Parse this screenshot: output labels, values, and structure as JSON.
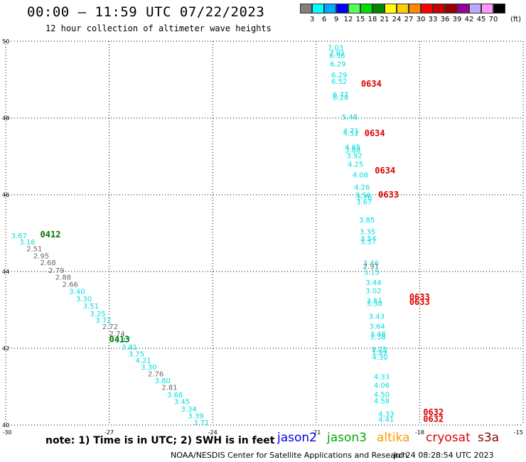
{
  "title": "00:00 – 11:59 UTC 07/22/2023",
  "subtitle": "12 hour collection of altimeter wave heights",
  "note": "note: 1) Time is in UTC; 2) SWH is in feet",
  "credit": "NOAA/NESDIS Center for Satellite Applications and Research",
  "stamp": "Jul 24 08:28:54 UTC 2023",
  "legend": [
    {
      "label": "jason2",
      "color": "#0000dd"
    },
    {
      "label": "jason3",
      "color": "#00aa00"
    },
    {
      "label": "altika",
      "color": "#ff9900"
    },
    {
      "label": "cryosat",
      "color": "#dd0000"
    },
    {
      "label": "s3a",
      "color": "#880000"
    }
  ],
  "colorbar": {
    "unit": "(ft)",
    "cells": [
      {
        "label": "3",
        "color": "#808080"
      },
      {
        "label": "6",
        "color": "#00ffff"
      },
      {
        "label": "9",
        "color": "#00aaff"
      },
      {
        "label": "12",
        "color": "#0000ff"
      },
      {
        "label": "15",
        "color": "#55ff55"
      },
      {
        "label": "18",
        "color": "#00dd00"
      },
      {
        "label": "21",
        "color": "#008800"
      },
      {
        "label": "24",
        "color": "#ffff00"
      },
      {
        "label": "27",
        "color": "#ffcc00"
      },
      {
        "label": "30",
        "color": "#ff8800"
      },
      {
        "label": "33",
        "color": "#ff0000"
      },
      {
        "label": "36",
        "color": "#cc0000"
      },
      {
        "label": "39",
        "color": "#990000"
      },
      {
        "label": "42",
        "color": "#990099"
      },
      {
        "label": "45",
        "color": "#bbaaff"
      },
      {
        "label": "70",
        "color": "#ff99ff"
      },
      {
        "label": "",
        "color": "#000000"
      }
    ]
  },
  "chart_data": {
    "type": "scatter",
    "xlim": [
      -30,
      -15
    ],
    "ylim": [
      40,
      50
    ],
    "xticks": [
      -30,
      -27,
      -24,
      -21,
      -18,
      -15
    ],
    "xtick_labels": [
      "-30",
      "-27",
      "-24",
      "-21",
      "-18",
      "-15"
    ],
    "yticks": [
      40,
      42,
      44,
      46,
      48,
      50
    ],
    "ytick_labels": [
      "40",
      "42",
      "44",
      "46",
      "48",
      "50"
    ],
    "grid": true,
    "colors": {
      "cyan": "#00dddd",
      "gray": "#666666",
      "green": "#007700",
      "red": "#dd0000"
    },
    "time_labels": [
      {
        "text": "0412",
        "lon": -29.0,
        "lat": 44.98,
        "color": "green"
      },
      {
        "text": "0413",
        "lon": -27.0,
        "lat": 42.25,
        "color": "green"
      },
      {
        "text": "0634",
        "lon": -19.7,
        "lat": 48.91,
        "color": "red"
      },
      {
        "text": "0634",
        "lon": -19.6,
        "lat": 47.62,
        "color": "red"
      },
      {
        "text": "0634",
        "lon": -19.3,
        "lat": 46.65,
        "color": "red"
      },
      {
        "text": "0633",
        "lon": -19.2,
        "lat": 46.02,
        "color": "red"
      },
      {
        "text": "0633",
        "lon": -18.3,
        "lat": 43.35,
        "color": "red"
      },
      {
        "text": "0633",
        "lon": -18.3,
        "lat": 43.22,
        "color": "red"
      },
      {
        "text": "0632",
        "lon": -17.9,
        "lat": 40.35,
        "color": "red"
      },
      {
        "text": "0632",
        "lon": -17.9,
        "lat": 40.18,
        "color": "red"
      }
    ],
    "points": [
      {
        "lon": -20.67,
        "lat": 49.84,
        "text": "7.03",
        "color": "cyan"
      },
      {
        "lon": -20.62,
        "lat": 49.7,
        "text": "7.01",
        "color": "cyan"
      },
      {
        "lon": -20.62,
        "lat": 49.64,
        "text": "6.56",
        "color": "cyan"
      },
      {
        "lon": -20.6,
        "lat": 49.42,
        "text": "6.29",
        "color": "cyan"
      },
      {
        "lon": -20.56,
        "lat": 49.13,
        "text": "6.29",
        "color": "cyan"
      },
      {
        "lon": -20.56,
        "lat": 48.96,
        "text": "6.52",
        "color": "cyan"
      },
      {
        "lon": -20.52,
        "lat": 48.62,
        "text": "6.77",
        "color": "cyan"
      },
      {
        "lon": -20.52,
        "lat": 48.55,
        "text": "6.28",
        "color": "cyan"
      },
      {
        "lon": -20.26,
        "lat": 48.04,
        "text": "5.48",
        "color": "cyan"
      },
      {
        "lon": -20.22,
        "lat": 47.68,
        "text": "4.71",
        "color": "cyan"
      },
      {
        "lon": -20.22,
        "lat": 47.61,
        "text": "4.52",
        "color": "cyan"
      },
      {
        "lon": -20.17,
        "lat": 47.25,
        "text": "4.65",
        "color": "cyan"
      },
      {
        "lon": -20.17,
        "lat": 47.18,
        "text": "3.88",
        "color": "cyan"
      },
      {
        "lon": -20.12,
        "lat": 47.03,
        "text": "3.92",
        "color": "cyan"
      },
      {
        "lon": -20.09,
        "lat": 46.81,
        "text": "4.25",
        "color": "cyan"
      },
      {
        "lon": -19.95,
        "lat": 46.53,
        "text": "4.08",
        "color": "cyan"
      },
      {
        "lon": -19.9,
        "lat": 46.2,
        "text": "4.26",
        "color": "cyan"
      },
      {
        "lon": -19.87,
        "lat": 46.0,
        "text": "3.56",
        "color": "cyan"
      },
      {
        "lon": -19.84,
        "lat": 45.94,
        "text": "3.76",
        "color": "cyan"
      },
      {
        "lon": -19.84,
        "lat": 45.82,
        "text": "3.67",
        "color": "cyan"
      },
      {
        "lon": -19.76,
        "lat": 45.35,
        "text": "3.85",
        "color": "cyan"
      },
      {
        "lon": -19.74,
        "lat": 45.05,
        "text": "3.35",
        "color": "cyan"
      },
      {
        "lon": -19.72,
        "lat": 44.87,
        "text": "3.54",
        "color": "cyan"
      },
      {
        "lon": -19.72,
        "lat": 44.79,
        "text": "3.57",
        "color": "cyan"
      },
      {
        "lon": -19.64,
        "lat": 44.23,
        "text": "3.46",
        "color": "cyan"
      },
      {
        "lon": -19.64,
        "lat": 44.15,
        "text": "2.91",
        "color": "gray"
      },
      {
        "lon": -19.62,
        "lat": 43.99,
        "text": "3.15",
        "color": "cyan"
      },
      {
        "lon": -19.57,
        "lat": 43.72,
        "text": "3.44",
        "color": "cyan"
      },
      {
        "lon": -19.57,
        "lat": 43.51,
        "text": "3.02",
        "color": "cyan"
      },
      {
        "lon": -19.54,
        "lat": 43.25,
        "text": "3.51",
        "color": "cyan"
      },
      {
        "lon": -19.54,
        "lat": 43.18,
        "text": "3.50",
        "color": "cyan"
      },
      {
        "lon": -19.48,
        "lat": 42.84,
        "text": "3.43",
        "color": "cyan"
      },
      {
        "lon": -19.46,
        "lat": 42.58,
        "text": "3.64",
        "color": "cyan"
      },
      {
        "lon": -19.44,
        "lat": 42.38,
        "text": "3.48",
        "color": "cyan"
      },
      {
        "lon": -19.44,
        "lat": 42.31,
        "text": "3.38",
        "color": "cyan"
      },
      {
        "lon": -19.4,
        "lat": 41.98,
        "text": "3.75",
        "color": "cyan"
      },
      {
        "lon": -19.4,
        "lat": 41.91,
        "text": "3.99",
        "color": "cyan"
      },
      {
        "lon": -19.38,
        "lat": 41.78,
        "text": "4.30",
        "color": "cyan"
      },
      {
        "lon": -19.33,
        "lat": 41.27,
        "text": "4.33",
        "color": "cyan"
      },
      {
        "lon": -19.33,
        "lat": 41.05,
        "text": "4.06",
        "color": "cyan"
      },
      {
        "lon": -19.33,
        "lat": 40.81,
        "text": "4.50",
        "color": "cyan"
      },
      {
        "lon": -19.33,
        "lat": 40.64,
        "text": "4.58",
        "color": "cyan"
      },
      {
        "lon": -19.2,
        "lat": 40.3,
        "text": "4.33",
        "color": "cyan"
      },
      {
        "lon": -19.2,
        "lat": 40.16,
        "text": "4.41",
        "color": "cyan"
      },
      {
        "lon": -29.84,
        "lat": 44.94,
        "text": "3.67",
        "color": "cyan"
      },
      {
        "lon": -29.6,
        "lat": 44.78,
        "text": "3.16",
        "color": "cyan"
      },
      {
        "lon": -29.4,
        "lat": 44.6,
        "text": "2.51",
        "color": "gray"
      },
      {
        "lon": -29.2,
        "lat": 44.42,
        "text": "2.95",
        "color": "gray"
      },
      {
        "lon": -29.0,
        "lat": 44.24,
        "text": "2.68",
        "color": "gray"
      },
      {
        "lon": -28.76,
        "lat": 44.04,
        "text": "2.79",
        "color": "gray"
      },
      {
        "lon": -28.56,
        "lat": 43.86,
        "text": "2.88",
        "color": "gray"
      },
      {
        "lon": -28.36,
        "lat": 43.68,
        "text": "2.66",
        "color": "gray"
      },
      {
        "lon": -28.16,
        "lat": 43.49,
        "text": "3.40",
        "color": "cyan"
      },
      {
        "lon": -27.96,
        "lat": 43.3,
        "text": "3.30",
        "color": "cyan"
      },
      {
        "lon": -27.76,
        "lat": 43.11,
        "text": "3.51",
        "color": "cyan"
      },
      {
        "lon": -27.56,
        "lat": 42.91,
        "text": "3.25",
        "color": "cyan"
      },
      {
        "lon": -27.4,
        "lat": 42.74,
        "text": "3.72",
        "color": "cyan"
      },
      {
        "lon": -27.2,
        "lat": 42.57,
        "text": "2.72",
        "color": "gray"
      },
      {
        "lon": -27.0,
        "lat": 42.39,
        "text": "2.74",
        "color": "gray"
      },
      {
        "lon": -26.84,
        "lat": 42.22,
        "text": "3.47",
        "color": "cyan"
      },
      {
        "lon": -26.64,
        "lat": 42.04,
        "text": "3.81",
        "color": "cyan"
      },
      {
        "lon": -26.44,
        "lat": 41.86,
        "text": "3.75",
        "color": "cyan"
      },
      {
        "lon": -26.24,
        "lat": 41.69,
        "text": "4.21",
        "color": "cyan"
      },
      {
        "lon": -26.08,
        "lat": 41.52,
        "text": "3.30",
        "color": "cyan"
      },
      {
        "lon": -25.88,
        "lat": 41.34,
        "text": "2.76",
        "color": "gray"
      },
      {
        "lon": -25.68,
        "lat": 41.17,
        "text": "3.80",
        "color": "cyan"
      },
      {
        "lon": -25.48,
        "lat": 40.99,
        "text": "2.81",
        "color": "gray"
      },
      {
        "lon": -25.32,
        "lat": 40.8,
        "text": "3.66",
        "color": "cyan"
      },
      {
        "lon": -25.12,
        "lat": 40.62,
        "text": "3.45",
        "color": "cyan"
      },
      {
        "lon": -24.92,
        "lat": 40.43,
        "text": "3.34",
        "color": "cyan"
      },
      {
        "lon": -24.72,
        "lat": 40.25,
        "text": "3.39",
        "color": "cyan"
      },
      {
        "lon": -24.56,
        "lat": 40.07,
        "text": "3.71",
        "color": "cyan"
      }
    ]
  }
}
